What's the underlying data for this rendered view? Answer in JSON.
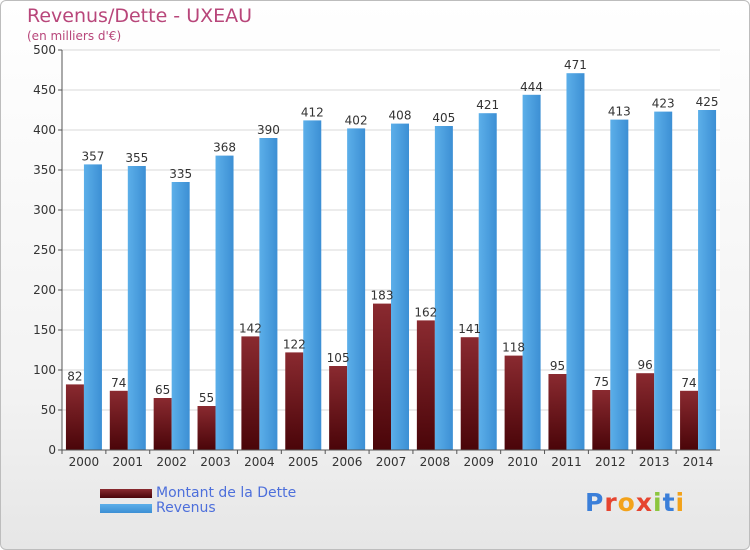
{
  "header": {
    "title": "Revenus/Dette - UXEAU",
    "subtitle": "(en milliers d'€)"
  },
  "colors": {
    "dette": "#6e1015",
    "revenus": "#4a9de0",
    "title": "#b8467a",
    "legend_text": "#4d6fdb"
  },
  "legend": {
    "items": [
      {
        "label": "Montant de la Dette",
        "color": "#6e1015"
      },
      {
        "label": "Revenus",
        "color": "#4a9de0"
      }
    ]
  },
  "logo": {
    "text": "Proxiti",
    "letter_colors": [
      "#3b7fd9",
      "#e6442f",
      "#f3a21a",
      "#e6442f",
      "#8cc63f",
      "#3b7fd9",
      "#f3a21a"
    ]
  },
  "chart_data": {
    "type": "bar",
    "title": "Revenus/Dette - UXEAU",
    "ylabel": "(en milliers d'€)",
    "xlabel": "",
    "ylim": [
      0,
      500
    ],
    "yticks": [
      0,
      50,
      100,
      150,
      200,
      250,
      300,
      350,
      400,
      450,
      500
    ],
    "grid": true,
    "legend_position": "bottom-left",
    "categories": [
      "2000",
      "2001",
      "2002",
      "2003",
      "2004",
      "2005",
      "2006",
      "2007",
      "2008",
      "2009",
      "2010",
      "2011",
      "2012",
      "2013",
      "2014"
    ],
    "series": [
      {
        "name": "Montant de la Dette",
        "values": [
          82,
          74,
          65,
          55,
          142,
          122,
          105,
          183,
          162,
          141,
          118,
          95,
          75,
          96,
          74
        ]
      },
      {
        "name": "Revenus",
        "values": [
          357,
          355,
          335,
          368,
          390,
          412,
          402,
          408,
          405,
          421,
          444,
          471,
          413,
          423,
          425
        ]
      }
    ]
  }
}
